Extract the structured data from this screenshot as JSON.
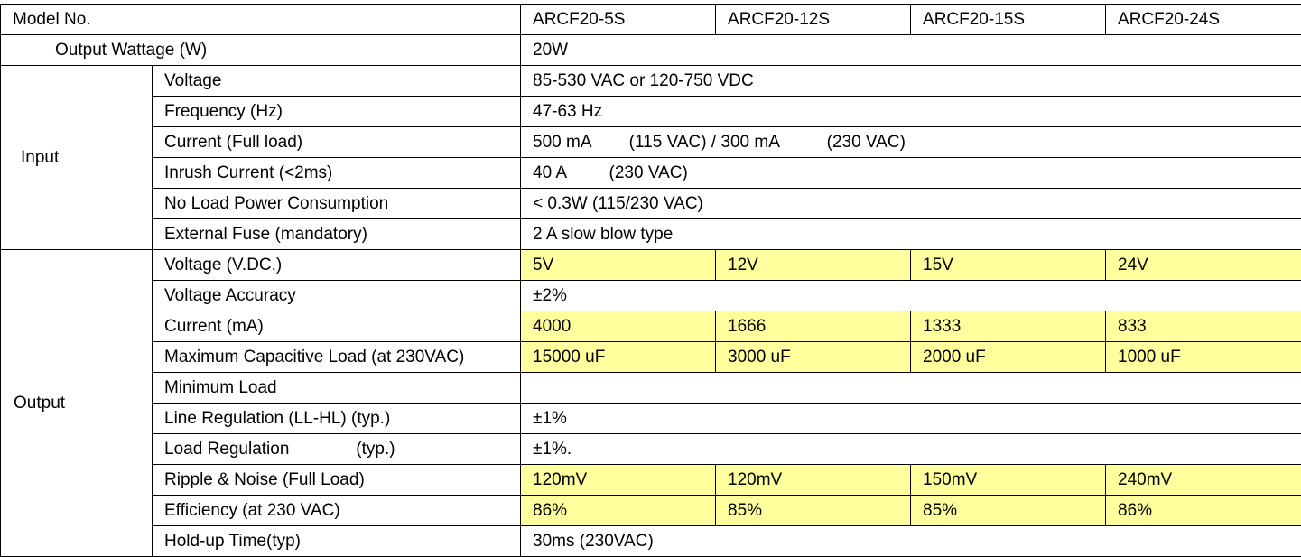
{
  "header": {
    "label": "Model No.",
    "models": [
      "ARCF20-5S",
      "ARCF20-12S",
      "ARCF20-15S",
      "ARCF20-24S"
    ]
  },
  "output_wattage": {
    "label": "Output Wattage (W)",
    "value": "20W"
  },
  "sections": [
    {
      "name": "Input",
      "rows": [
        {
          "label": "Voltage",
          "value": "85-530 VAC or 120-750 VDC"
        },
        {
          "label": "Frequency (Hz)",
          "value": "47-63 Hz"
        },
        {
          "label": "Current (Full load)",
          "value": "500 mA        (115 VAC) / 300 mA          (230 VAC)"
        },
        {
          "label": "Inrush Current (<2ms)",
          "value": "40 A         (230 VAC)"
        },
        {
          "label": "No Load Power Consumption",
          "value": "< 0.3W (115/230 VAC)"
        },
        {
          "label": "External Fuse (mandatory)",
          "value": "2 A slow blow type"
        }
      ]
    },
    {
      "name": "Output",
      "rows": [
        {
          "label": "Voltage (V.DC.)",
          "values": [
            "5V",
            "12V",
            "15V",
            "24V"
          ]
        },
        {
          "label": "Voltage Accuracy",
          "value": "±2%"
        },
        {
          "label": "Current (mA)",
          "values": [
            "4000",
            "1666",
            "1333",
            "833"
          ]
        },
        {
          "label": "Maximum Capacitive Load (at 230VAC)",
          "values": [
            "15000 uF",
            "3000 uF",
            "2000 uF",
            "1000 uF"
          ]
        },
        {
          "label": "Minimum Load"
        },
        {
          "label": "Line Regulation (LL-HL) (typ.)",
          "value": "±1%"
        },
        {
          "label": "Load Regulation              (typ.)",
          "value": "±1%."
        },
        {
          "label": "Ripple & Noise (Full Load)",
          "values": [
            "120mV",
            "120mV",
            "150mV",
            "240mV"
          ]
        },
        {
          "label": "Efficiency (at 230 VAC)",
          "values": [
            "86%",
            "85%",
            "85%",
            "86%"
          ]
        },
        {
          "label": "Hold-up Time(typ)",
          "value": "30ms (230VAC)"
        }
      ]
    }
  ]
}
